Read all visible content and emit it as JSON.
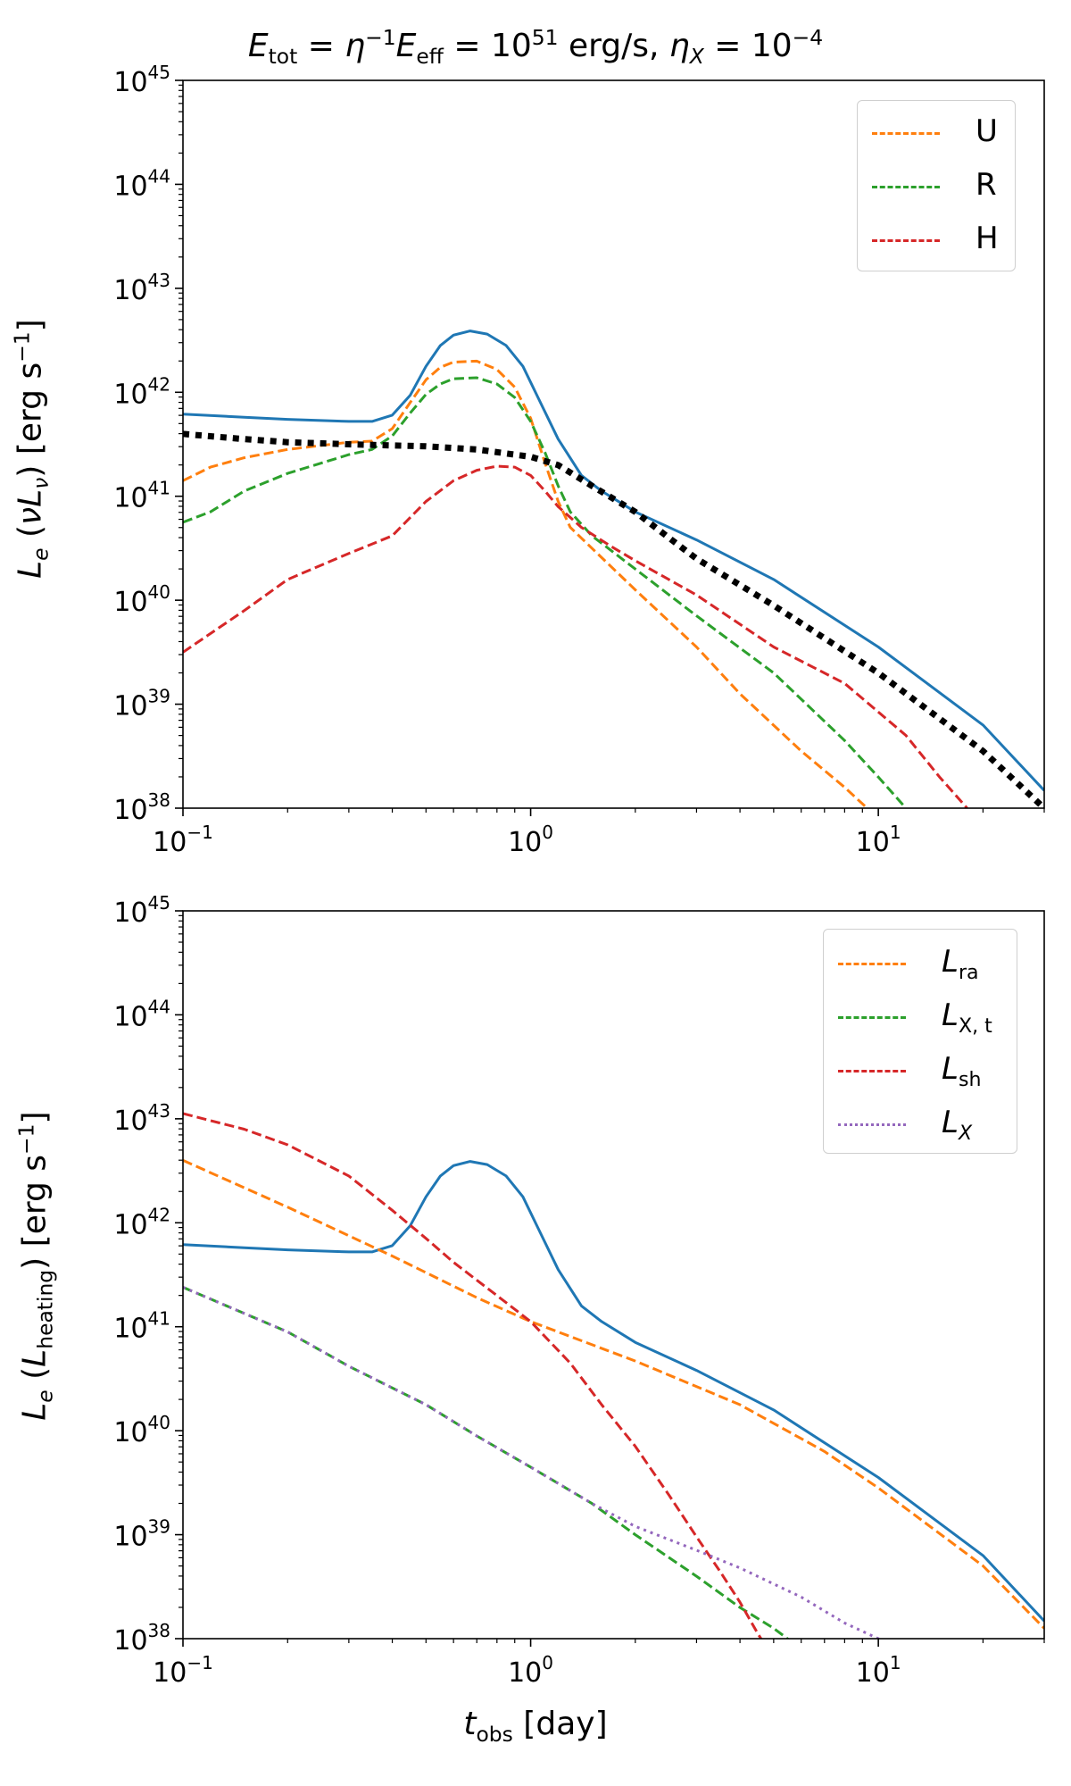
{
  "figure_title": "E_tot = η^-1 E_eff = 10^51 erg/s,  η_X = 10^-4",
  "title_parts": {
    "e": "E",
    "tot": "tot",
    "eq1": " = ",
    "eta": "η",
    "sup_m1": "−1",
    "e2": "E",
    "eff": "eff",
    "eq2": " = 10",
    "sup51": "51",
    "unit": " erg/s,  ",
    "eta2": "η",
    "x": "X",
    "eq3": " = 10",
    "supm4": "−4"
  },
  "axes": {
    "xlim": [
      0.1,
      30
    ],
    "ylim_exp": [
      38,
      45
    ],
    "x_ticks": [
      {
        "base": "10",
        "exp": "−1"
      },
      {
        "base": "10",
        "exp": "0"
      },
      {
        "base": "10",
        "exp": "1"
      }
    ],
    "y_ticks": [
      {
        "base": "10",
        "exp": "38"
      },
      {
        "base": "10",
        "exp": "39"
      },
      {
        "base": "10",
        "exp": "40"
      },
      {
        "base": "10",
        "exp": "41"
      },
      {
        "base": "10",
        "exp": "42"
      },
      {
        "base": "10",
        "exp": "43"
      },
      {
        "base": "10",
        "exp": "44"
      },
      {
        "base": "10",
        "exp": "45"
      }
    ]
  },
  "xlabel": {
    "t": "t",
    "sub": "obs",
    "unit": " [day]"
  },
  "top_ylabel": {
    "l": "L",
    "e": "e",
    "mid": " (",
    "nu": "ν",
    "l2": "L",
    "nusub": "ν",
    "unit": ") [erg s",
    "sup": "−1",
    "close": "]"
  },
  "bottom_ylabel": {
    "l": "L",
    "e": "e",
    "mid": " (",
    "l2": "L",
    "heat": "heating",
    "unit": ") [erg s",
    "sup": "−1",
    "close": "]"
  },
  "top_legend": [
    {
      "label": "U",
      "color": "#ff7f0e"
    },
    {
      "label": "R",
      "color": "#2ca02c"
    },
    {
      "label": "H",
      "color": "#d62728"
    }
  ],
  "bottom_legend": [
    {
      "sym": "L",
      "sub": "ra",
      "color": "#ff7f0e",
      "style": "dashed"
    },
    {
      "sym": "L",
      "sub": "X, t",
      "color": "#2ca02c",
      "style": "dashed"
    },
    {
      "sym": "L",
      "sub": "sh",
      "color": "#d62728",
      "style": "dashed"
    },
    {
      "sym": "L",
      "sub": "X",
      "color": "#9467bd",
      "style": "dotted",
      "italic_sub": true
    }
  ],
  "chart_data": [
    {
      "type": "line",
      "panel": "top",
      "title": "E_tot = η^-1 E_eff = 10^51 erg/s,  η_X = 10^-4",
      "xlabel": "t_obs [day]",
      "ylabel": "L_e (νL_ν) [erg s^-1]",
      "xscale": "log",
      "yscale": "log",
      "xlim": [
        0.1,
        30
      ],
      "ylim": [
        1e+38,
        1e+45
      ],
      "legend_position": "top-right",
      "series": [
        {
          "name": "total",
          "color": "#1f77b4",
          "style": "solid",
          "x": [
            0.1,
            0.15,
            0.2,
            0.3,
            0.35,
            0.4,
            0.45,
            0.5,
            0.55,
            0.6,
            0.67,
            0.75,
            0.85,
            0.95,
            1.05,
            1.2,
            1.4,
            1.6,
            2.0,
            3.0,
            5.0,
            10,
            20,
            30
          ],
          "y_log10": [
            41.79,
            41.76,
            41.74,
            41.72,
            41.72,
            41.78,
            41.97,
            42.25,
            42.45,
            42.55,
            42.59,
            42.56,
            42.45,
            42.25,
            41.95,
            41.55,
            41.2,
            41.05,
            40.85,
            40.58,
            40.2,
            39.55,
            38.8,
            38.17
          ]
        },
        {
          "name": "U",
          "color": "#ff7f0e",
          "style": "dashed",
          "x": [
            0.1,
            0.12,
            0.15,
            0.2,
            0.3,
            0.35,
            0.4,
            0.45,
            0.5,
            0.55,
            0.6,
            0.7,
            0.8,
            0.9,
            1.0,
            1.1,
            1.2,
            1.3,
            1.5,
            2.0,
            3.0,
            4.0,
            6.0,
            8.0,
            10.0
          ],
          "y_log10": [
            41.15,
            41.28,
            41.37,
            41.45,
            41.52,
            41.53,
            41.65,
            41.9,
            42.12,
            42.24,
            42.29,
            42.3,
            42.22,
            42.05,
            41.75,
            41.32,
            40.95,
            40.7,
            40.5,
            40.1,
            39.55,
            39.1,
            38.55,
            38.2,
            37.9
          ]
        },
        {
          "name": "R",
          "color": "#2ca02c",
          "style": "dashed",
          "x": [
            0.1,
            0.12,
            0.15,
            0.2,
            0.3,
            0.35,
            0.4,
            0.45,
            0.5,
            0.55,
            0.6,
            0.7,
            0.8,
            0.9,
            1.0,
            1.1,
            1.2,
            1.3,
            1.5,
            2.0,
            3.0,
            5.0,
            8.0,
            10.0,
            12.0
          ],
          "y_log10": [
            40.75,
            40.85,
            41.05,
            41.22,
            41.4,
            41.45,
            41.58,
            41.8,
            41.98,
            42.08,
            42.13,
            42.14,
            42.08,
            41.95,
            41.72,
            41.42,
            41.1,
            40.85,
            40.62,
            40.3,
            39.85,
            39.3,
            38.65,
            38.3,
            38.0
          ]
        },
        {
          "name": "H",
          "color": "#d62728",
          "style": "dashed",
          "x": [
            0.1,
            0.15,
            0.2,
            0.3,
            0.4,
            0.5,
            0.6,
            0.7,
            0.8,
            0.9,
            1.0,
            1.1,
            1.2,
            1.4,
            1.7,
            2.0,
            3.0,
            5.0,
            8.0,
            12.0,
            15.0,
            18.0
          ],
          "y_log10": [
            39.5,
            39.9,
            40.2,
            40.45,
            40.62,
            40.95,
            41.15,
            41.25,
            41.29,
            41.28,
            41.2,
            41.05,
            40.9,
            40.7,
            40.52,
            40.38,
            40.05,
            39.55,
            39.2,
            38.7,
            38.3,
            38.0
          ]
        },
        {
          "name": "black dotted",
          "color": "#000000",
          "style": "dotted",
          "x": [
            0.1,
            0.15,
            0.2,
            0.3,
            0.5,
            0.7,
            1.0,
            1.2,
            1.5,
            2.0,
            2.5,
            3.0,
            5.0,
            10,
            20,
            30
          ],
          "y_log10": [
            41.6,
            41.55,
            41.52,
            41.5,
            41.48,
            41.45,
            41.38,
            41.3,
            41.1,
            40.85,
            40.6,
            40.4,
            39.95,
            39.3,
            38.55,
            38.0
          ]
        }
      ]
    },
    {
      "type": "line",
      "panel": "bottom",
      "xlabel": "t_obs [day]",
      "ylabel": "L_e (L_heating) [erg s^-1]",
      "xscale": "log",
      "yscale": "log",
      "xlim": [
        0.1,
        30
      ],
      "ylim": [
        1e+38,
        1e+45
      ],
      "legend_position": "top-right",
      "series": [
        {
          "name": "total",
          "color": "#1f77b4",
          "style": "solid",
          "x": [
            0.1,
            0.15,
            0.2,
            0.3,
            0.35,
            0.4,
            0.45,
            0.5,
            0.55,
            0.6,
            0.67,
            0.75,
            0.85,
            0.95,
            1.05,
            1.2,
            1.4,
            1.6,
            2.0,
            3.0,
            5.0,
            10,
            20,
            30
          ],
          "y_log10": [
            41.79,
            41.76,
            41.74,
            41.72,
            41.72,
            41.78,
            41.97,
            42.25,
            42.45,
            42.55,
            42.59,
            42.56,
            42.45,
            42.25,
            41.95,
            41.55,
            41.2,
            41.05,
            40.85,
            40.58,
            40.2,
            39.55,
            38.8,
            38.17
          ]
        },
        {
          "name": "L_ra",
          "color": "#ff7f0e",
          "style": "dashed",
          "x": [
            0.1,
            0.2,
            0.4,
            0.7,
            1.0,
            2.0,
            4.0,
            7.0,
            10,
            20,
            30
          ],
          "y_log10": [
            42.6,
            42.15,
            41.68,
            41.28,
            41.05,
            40.67,
            40.25,
            39.8,
            39.45,
            38.7,
            38.1
          ]
        },
        {
          "name": "L_X,t",
          "color": "#2ca02c",
          "style": "dashed",
          "x": [
            0.1,
            0.2,
            0.3,
            0.5,
            0.7,
            1.0,
            1.5,
            2.0,
            3.0,
            4.0,
            5.0,
            6.0
          ],
          "y_log10": [
            41.38,
            40.95,
            40.62,
            40.25,
            39.95,
            39.65,
            39.3,
            39.0,
            38.6,
            38.3,
            38.1,
            37.9
          ]
        },
        {
          "name": "L_sh",
          "color": "#d62728",
          "style": "dashed",
          "x": [
            0.1,
            0.15,
            0.2,
            0.3,
            0.4,
            0.5,
            0.6,
            0.8,
            1.0,
            1.3,
            1.6,
            2.0,
            2.5,
            3.0,
            3.5,
            4.0,
            4.5,
            4.8
          ],
          "y_log10": [
            43.05,
            42.9,
            42.75,
            42.45,
            42.12,
            41.85,
            41.62,
            41.3,
            41.05,
            40.65,
            40.25,
            39.85,
            39.38,
            38.98,
            38.65,
            38.35,
            38.05,
            37.9
          ]
        },
        {
          "name": "L_X",
          "color": "#9467bd",
          "style": "dotted",
          "x": [
            0.1,
            0.2,
            0.3,
            0.5,
            0.7,
            1.0,
            1.5,
            2.0,
            3.0,
            4.0,
            6.0,
            8.0,
            10.0,
            11.0
          ],
          "y_log10": [
            41.38,
            40.95,
            40.62,
            40.25,
            39.95,
            39.65,
            39.3,
            39.08,
            38.85,
            38.68,
            38.4,
            38.15,
            38.0,
            37.9
          ]
        }
      ]
    }
  ]
}
